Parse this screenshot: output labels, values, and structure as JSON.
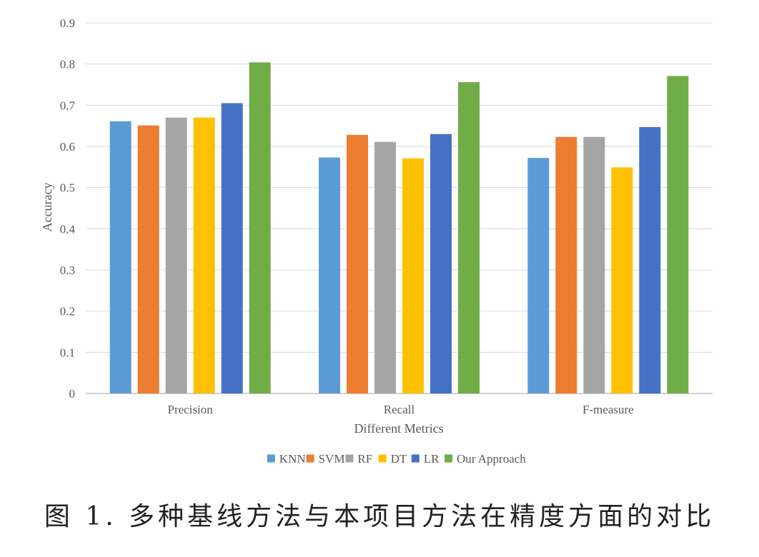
{
  "chart_data": {
    "type": "bar",
    "categories": [
      "Precision",
      "Recall",
      "F-measure"
    ],
    "series": [
      {
        "name": "KNN",
        "values": [
          0.661,
          0.573,
          0.572
        ],
        "color": "#5B9BD5"
      },
      {
        "name": "SVM",
        "values": [
          0.651,
          0.628,
          0.623
        ],
        "color": "#ED7D31"
      },
      {
        "name": "RF",
        "values": [
          0.67,
          0.611,
          0.623
        ],
        "color": "#A5A5A5"
      },
      {
        "name": "DT",
        "values": [
          0.67,
          0.571,
          0.549
        ],
        "color": "#FFC000"
      },
      {
        "name": "LR",
        "values": [
          0.705,
          0.63,
          0.647
        ],
        "color": "#4472C4"
      },
      {
        "name": "Our Approach",
        "values": [
          0.804,
          0.756,
          0.771
        ],
        "color": "#70AD47"
      }
    ],
    "xlabel": "Different Metrics",
    "ylabel": "Accuracy",
    "ylim": [
      0,
      0.9
    ],
    "yticks": [
      "0",
      "0.1",
      "0.2",
      "0.3",
      "0.4",
      "0.5",
      "0.6",
      "0.7",
      "0.8",
      "0.9"
    ],
    "grid": true,
    "legend_position": "bottom"
  },
  "caption": "图 1. 多种基线方法与本项目方法在精度方面的对比"
}
